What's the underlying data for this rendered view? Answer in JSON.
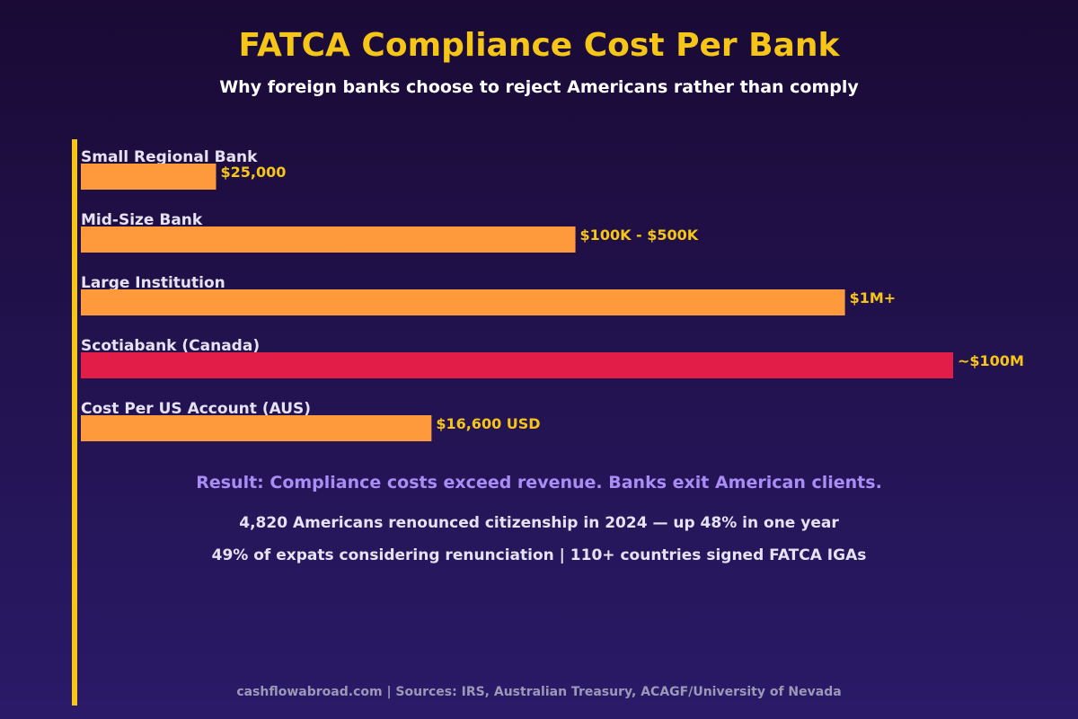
{
  "chart_data": {
    "type": "bar",
    "orientation": "horizontal",
    "title": "FATCA Compliance Cost Per Bank",
    "subtitle": "Why foreign banks choose to reject Americans rather than comply",
    "categories": [
      "Small Regional Bank",
      "Mid-Size Bank",
      "Large Institution",
      "Scotiabank (Canada)",
      "Cost Per US Account (AUS)"
    ],
    "value_labels": [
      "$25,000",
      "$100K - $500K",
      "$1M+",
      "~$100M",
      "$16,600 USD"
    ],
    "relative_lengths": [
      0.155,
      0.567,
      0.876,
      1.0,
      0.402
    ],
    "bar_colors": [
      "#ff9a3c",
      "#ff9a3c",
      "#ff9a3c",
      "#e11d48",
      "#ff9a3c"
    ],
    "grid": false,
    "legend": "none"
  },
  "result_text": "Result: Compliance costs exceed revenue. Banks exit American clients.",
  "stats": [
    "4,820 Americans renounced citizenship in 2024 — up 48% in one year",
    "49% of expats considering renunciation  |  110+ countries signed FATCA IGAs"
  ],
  "footer": "cashflowabroad.com  |  Sources: IRS, Australian Treasury, ACAGF/University of Nevada",
  "colors": {
    "accent": "#f5c518",
    "bar": "#ff9a3c",
    "highlight_bar": "#e11d48",
    "result": "#a98cf5"
  }
}
